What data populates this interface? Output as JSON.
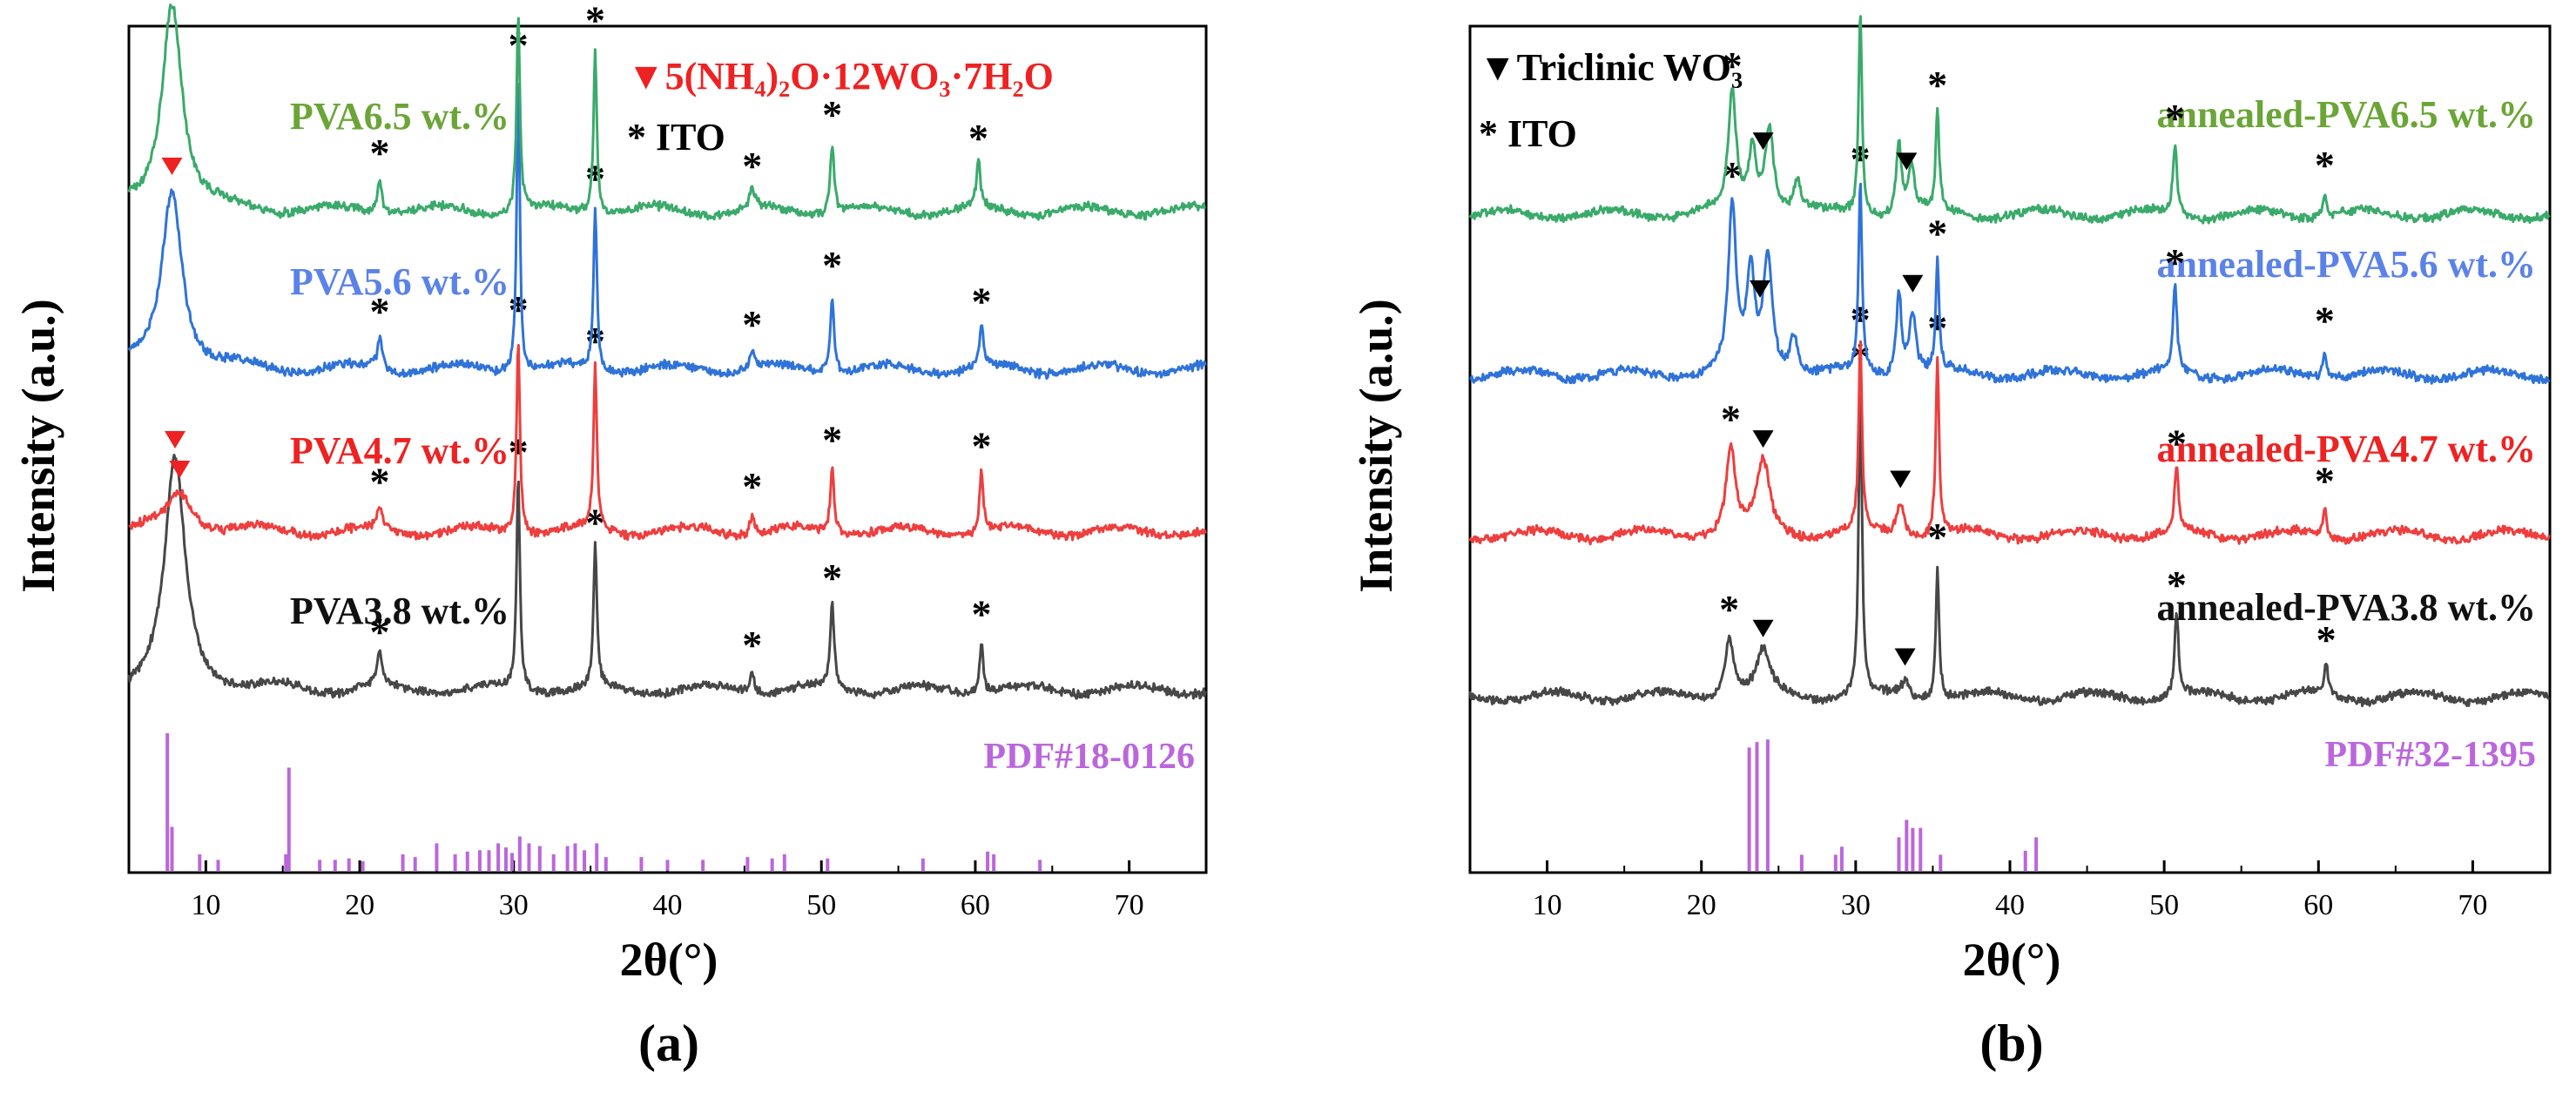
{
  "colors": {
    "axis": "#000000",
    "s38": "#474747",
    "s47": "#ee3e3e",
    "s56": "#2f73d8",
    "s65": "#3aaa6a",
    "label38": "#111111",
    "label47": "#ee2222",
    "label56": "#5b82e8",
    "label65": "#6ba537",
    "ref": "#bb66dd",
    "legendRed": "#ee2222"
  },
  "chart_data": [
    {
      "type": "line",
      "panel_label": "(a)",
      "xlabel": "2θ(°)",
      "ylabel": "Intensity (a.u.)",
      "xlim": [
        5,
        75
      ],
      "xticks": [
        10,
        20,
        30,
        40,
        50,
        60,
        70
      ],
      "legend": [
        {
          "marker": "▼",
          "text": "5(NH₄)₂O·12WO₃·7H₂O",
          "color": "red"
        },
        {
          "marker": "*",
          "text": "ITO",
          "color": "black"
        }
      ],
      "reference": {
        "label": "PDF#18-0126",
        "lines": [
          [
            7.5,
            1.0
          ],
          [
            7.8,
            0.32
          ],
          [
            9.6,
            0.12
          ],
          [
            10.8,
            0.08
          ],
          [
            15.2,
            0.12
          ],
          [
            15.4,
            0.75
          ],
          [
            17.4,
            0.08
          ],
          [
            18.4,
            0.08
          ],
          [
            19.3,
            0.09
          ],
          [
            20.2,
            0.07
          ],
          [
            22.8,
            0.12
          ],
          [
            23.6,
            0.1
          ],
          [
            25.0,
            0.2
          ],
          [
            26.2,
            0.12
          ],
          [
            27.0,
            0.14
          ],
          [
            27.8,
            0.15
          ],
          [
            28.4,
            0.15
          ],
          [
            29.0,
            0.2
          ],
          [
            29.5,
            0.17
          ],
          [
            29.9,
            0.13
          ],
          [
            30.4,
            0.25
          ],
          [
            31.0,
            0.2
          ],
          [
            31.7,
            0.18
          ],
          [
            32.6,
            0.12
          ],
          [
            33.5,
            0.18
          ],
          [
            34.0,
            0.2
          ],
          [
            34.6,
            0.15
          ],
          [
            35.4,
            0.2
          ],
          [
            36.0,
            0.1
          ],
          [
            38.3,
            0.1
          ],
          [
            40.0,
            0.08
          ],
          [
            42.3,
            0.08
          ],
          [
            45.2,
            0.1
          ],
          [
            46.8,
            0.09
          ],
          [
            47.6,
            0.12
          ],
          [
            50.4,
            0.09
          ],
          [
            56.6,
            0.09
          ],
          [
            60.8,
            0.14
          ],
          [
            61.2,
            0.12
          ],
          [
            64.2,
            0.08
          ]
        ]
      },
      "series": [
        {
          "name": "PVA3.8 wt.%",
          "colorKey": "s38",
          "labelColorKey": "label38",
          "baseline": 0.0,
          "peaks": [
            [
              8.0,
              1.45,
              0.8
            ],
            [
              21.3,
              0.2,
              0.2
            ],
            [
              30.3,
              1.35,
              0.13
            ],
            [
              35.3,
              0.9,
              0.13
            ],
            [
              45.5,
              0.12,
              0.2
            ],
            [
              50.7,
              0.55,
              0.15
            ],
            [
              60.4,
              0.32,
              0.15
            ]
          ],
          "triangle_markers": [
            8.0
          ],
          "star_markers": [
            21.3,
            30.3,
            35.3,
            45.5,
            50.7,
            60.4
          ]
        },
        {
          "name": "PVA4.7 wt.%",
          "colorKey": "s47",
          "labelColorKey": "label47",
          "baseline": 1.0,
          "peaks": [
            [
              8.3,
              0.25,
              1.0
            ],
            [
              21.3,
              0.15,
              0.2
            ],
            [
              30.3,
              1.25,
              0.13
            ],
            [
              35.3,
              1.05,
              0.13
            ],
            [
              45.5,
              0.12,
              0.2
            ],
            [
              50.7,
              0.42,
              0.15
            ],
            [
              60.4,
              0.38,
              0.15
            ]
          ],
          "triangle_markers": [
            8.3
          ],
          "star_markers": [
            21.3,
            30.3,
            35.3,
            45.5,
            50.7,
            60.4
          ]
        },
        {
          "name": "PVA5.6 wt.%",
          "colorKey": "s56",
          "labelColorKey": "label56",
          "baseline": 2.0,
          "peaks": [
            [
              7.8,
              1.15,
              0.8
            ],
            [
              21.3,
              0.2,
              0.2
            ],
            [
              30.3,
              1.9,
              0.12
            ],
            [
              35.3,
              1.05,
              0.13
            ],
            [
              45.5,
              0.12,
              0.2
            ],
            [
              50.7,
              0.5,
              0.15
            ],
            [
              60.4,
              0.27,
              0.15
            ]
          ],
          "triangle_markers": [
            7.8
          ],
          "star_markers": [
            21.3,
            30.3,
            35.3,
            45.5,
            50.7,
            60.4
          ]
        },
        {
          "name": "PVA6.5 wt.%",
          "colorKey": "s65",
          "labelColorKey": "label65",
          "baseline": 3.0,
          "peaks": [
            [
              7.8,
              1.35,
              0.8
            ],
            [
              21.3,
              0.2,
              0.2
            ],
            [
              30.3,
              1.25,
              0.13
            ],
            [
              35.3,
              1.05,
              0.13
            ],
            [
              45.5,
              0.12,
              0.2
            ],
            [
              50.7,
              0.45,
              0.15
            ],
            [
              60.2,
              0.3,
              0.15
            ]
          ],
          "triangle_markers": [
            7.8
          ],
          "star_markers": [
            21.3,
            30.3,
            35.3,
            45.5,
            50.7,
            60.2
          ]
        }
      ]
    },
    {
      "type": "line",
      "panel_label": "(b)",
      "xlabel": "2θ(°)",
      "ylabel": "Intensity (a.u.)",
      "xlim": [
        5,
        75
      ],
      "xticks": [
        10,
        20,
        30,
        40,
        50,
        60,
        70
      ],
      "legend": [
        {
          "marker": "▼",
          "text": "Triclinic WO₃",
          "color": "black"
        },
        {
          "marker": "*",
          "text": "ITO",
          "color": "black"
        }
      ],
      "reference": {
        "label": "PDF#32-1395",
        "lines": [
          [
            23.1,
            0.92
          ],
          [
            23.6,
            0.96
          ],
          [
            24.3,
            0.98
          ],
          [
            26.5,
            0.12
          ],
          [
            28.7,
            0.12
          ],
          [
            29.1,
            0.18
          ],
          [
            32.8,
            0.25
          ],
          [
            33.3,
            0.38
          ],
          [
            33.7,
            0.32
          ],
          [
            34.2,
            0.32
          ],
          [
            35.5,
            0.12
          ],
          [
            41.0,
            0.15
          ],
          [
            41.7,
            0.25
          ]
        ]
      },
      "series": [
        {
          "name": "annealed-PVA3.8 wt.%",
          "colorKey": "s38",
          "labelColorKey": "label38",
          "baseline": 0.0,
          "peaks": [
            [
              21.8,
              0.38,
              0.35
            ],
            [
              24.0,
              0.28,
              0.5
            ],
            [
              30.3,
              2.0,
              0.13
            ],
            [
              33.2,
              0.1,
              0.3
            ],
            [
              35.3,
              0.85,
              0.13
            ],
            [
              50.8,
              0.55,
              0.15
            ],
            [
              60.5,
              0.2,
              0.15
            ]
          ],
          "triangle_markers": [
            24.0,
            33.2
          ],
          "star_markers": [
            21.8,
            30.3,
            35.3,
            50.8,
            60.5
          ]
        },
        {
          "name": "annealed-PVA4.7 wt.%",
          "colorKey": "s47",
          "labelColorKey": "label47",
          "baseline": 1.0,
          "peaks": [
            [
              21.9,
              0.55,
              0.35
            ],
            [
              24.0,
              0.45,
              0.5
            ],
            [
              30.3,
              1.2,
              0.13
            ],
            [
              32.9,
              0.2,
              0.3
            ],
            [
              35.3,
              1.15,
              0.13
            ],
            [
              50.8,
              0.42,
              0.15
            ],
            [
              60.4,
              0.18,
              0.15
            ]
          ],
          "triangle_markers": [
            24.0,
            32.9
          ],
          "star_markers": [
            21.9,
            30.3,
            35.3,
            50.8,
            60.4
          ]
        },
        {
          "name": "annealed-PVA5.6 wt.%",
          "colorKey": "s56",
          "labelColorKey": "label56",
          "baseline": 2.0,
          "peaks": [
            [
              22.0,
              1.05,
              0.3
            ],
            [
              23.2,
              0.6,
              0.3
            ],
            [
              24.3,
              0.75,
              0.35
            ],
            [
              26.0,
              0.25,
              0.3
            ],
            [
              30.3,
              1.2,
              0.13
            ],
            [
              32.8,
              0.55,
              0.2
            ],
            [
              33.7,
              0.4,
              0.25
            ],
            [
              35.3,
              0.72,
              0.13
            ],
            [
              50.7,
              0.55,
              0.15
            ],
            [
              60.4,
              0.18,
              0.15
            ]
          ],
          "triangle_markers": [
            23.8,
            33.7
          ],
          "star_markers": [
            22.0,
            30.3,
            35.3,
            50.7,
            60.4
          ]
        },
        {
          "name": "annealed-PVA6.5 wt.%",
          "colorKey": "s65",
          "labelColorKey": "label65",
          "baseline": 3.0,
          "peaks": [
            [
              22.0,
              0.75,
              0.3
            ],
            [
              23.3,
              0.4,
              0.3
            ],
            [
              24.4,
              0.55,
              0.35
            ],
            [
              26.2,
              0.2,
              0.3
            ],
            [
              30.3,
              1.3,
              0.13
            ],
            [
              32.8,
              0.45,
              0.2
            ],
            [
              33.6,
              0.3,
              0.25
            ],
            [
              35.3,
              0.65,
              0.13
            ],
            [
              50.7,
              0.45,
              0.15
            ],
            [
              60.4,
              0.15,
              0.15
            ]
          ],
          "triangle_markers": [
            24.0,
            33.3
          ],
          "star_markers": [
            22.0,
            30.3,
            35.3,
            50.7,
            60.4
          ]
        }
      ]
    }
  ]
}
